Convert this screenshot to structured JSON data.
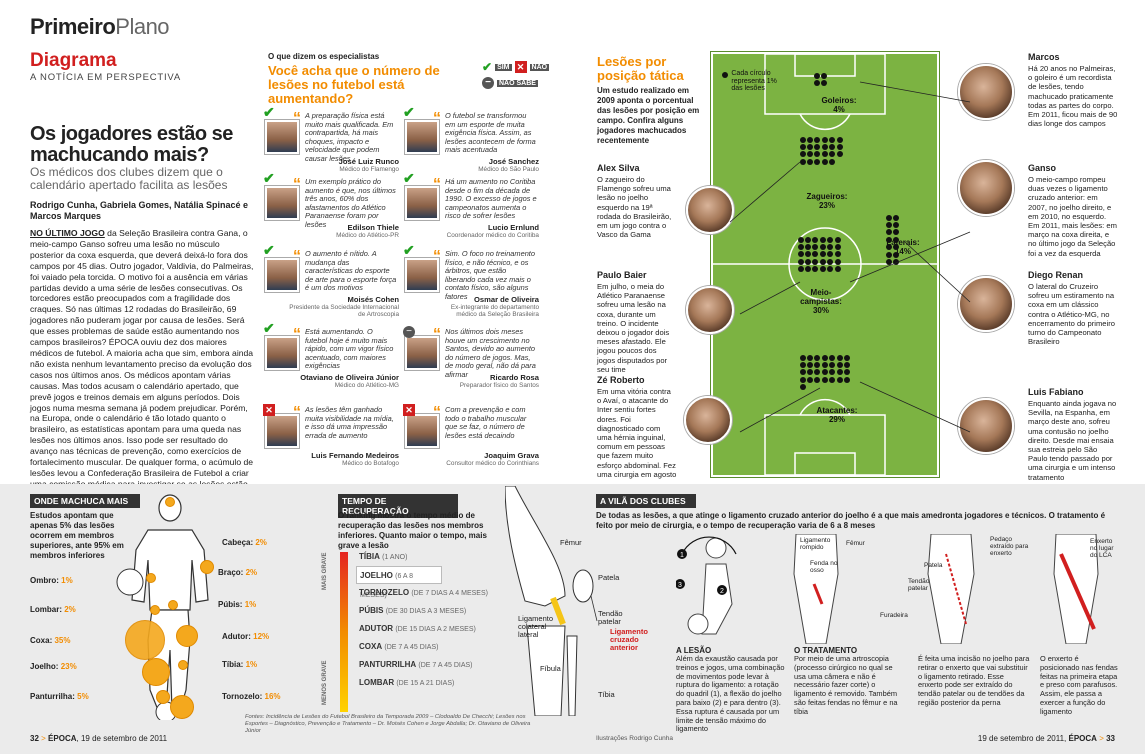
{
  "header": {
    "brand_bold": "Primeiro",
    "brand_light": "Plano",
    "section": "Diagrama",
    "tagline": "A NOTÍCIA EM PERSPECTIVA"
  },
  "article": {
    "headline": "Os jogadores estão se machucando mais?",
    "subhead": "Os médicos dos clubes dizem que o calendário apertado facilita as lesões",
    "authors": "Rodrigo Cunha, Gabriela Gomes, Natália Spinacé e Marcos Marques",
    "lead": "NO ÚLTIMO JOGO",
    "body": " da Seleção Brasileira contra Gana, o meio-campo Ganso sofreu uma lesão no músculo posterior da coxa esquerda, que deverá deixá-lo fora dos campos por 45 dias. Outro jogador, Valdivia, do Palmeiras, foi vaiado pela torcida. O motivo foi a ausência em várias partidas devido a uma série de lesões consecutivas. Os torcedores estão preocupados com a fragilidade dos craques. Só nas últimas 12 rodadas do Brasileirão, 69 jogadores não puderam jogar por causa de lesões. Será que esses problemas de saúde estão aumentando nos campos brasileiros? ÉPOCA ouviu dez dos maiores médicos de futebol. A maioria acha que sim, embora ainda não exista nenhum levantamento preciso da evolução dos casos nos últimos anos. Os médicos apontam várias causas. Mas todos acusam o calendário apertado, que prevê jogos e treinos demais em alguns períodos. Dois jogos numa mesma semana já podem prejudicar. Porém, na Europa, onde o calendário é tão lotado quanto o brasileiro, as estatísticas apontam para uma queda nas lesões nos últimos anos. Isso pode ser resultado do avanço nas técnicas de prevenção, como exercícios de fortalecimento muscular. De qualquer forma, o acúmulo de lesões levou a Confederação Brasileira de Futebol a criar uma comissão médica para investigar se as lesões estão crescendo e descobrir suas causas."
  },
  "experts": {
    "kicker": "O que dizem os especialistas",
    "question": "Você acha que o número de lesões no futebol está aumentando?",
    "legend": {
      "yes": "SIM",
      "no": "NÃO",
      "unsure": "NÃO SABE"
    },
    "items": [
      {
        "answer": "yes",
        "quote": "A preparação física está muito mais qualificada. Em contrapartida, há mais choques, impacto e velocidade que podem causar lesões",
        "name": "José Luiz Runco",
        "role": "Médico do Flamengo"
      },
      {
        "answer": "yes",
        "quote": "O futebol se transformou em um esporte de muita exigência física. Assim, as lesões acontecem de forma mais acentuada",
        "name": "José Sanchez",
        "role": "Médico do São Paulo"
      },
      {
        "answer": "yes",
        "quote": "Um exemplo prático do aumento é que, nos últimos três anos, 60% dos afastamentos do Atlético Paranaense foram por lesões",
        "name": "Edilson Thiele",
        "role": "Médico do Atlético-PR"
      },
      {
        "answer": "yes",
        "quote": "Há um aumento no Coritiba desde o fim da década de 1990. O excesso de jogos e campeonatos aumenta o risco de sofrer lesões",
        "name": "Lucio Ernlund",
        "role": "Coordenador médico do Coritiba"
      },
      {
        "answer": "yes",
        "quote": "O aumento é nítido. A mudança das características do esporte de arte para o esporte força é um dos motivos",
        "name": "Moisés Cohen",
        "role": "Presidente da Sociedade Internacional de Artroscopia"
      },
      {
        "answer": "yes",
        "quote": "Sim. O foco no treinamento físico, e não técnico, e os árbitros, que estão liberando cada vez mais o contato físico, são alguns fatores",
        "name": "Osmar de Oliveira",
        "role": "Ex-integrante do departamento médico da Seleção Brasileira"
      },
      {
        "answer": "yes",
        "quote": "Está aumentando. O futebol hoje é muito mais rápido, com um vigor físico acentuado, com maiores exigências",
        "name": "Otaviano de Oliveira Júnior",
        "role": "Médico do Atlético-MG"
      },
      {
        "answer": "unsure",
        "quote": "Nos últimos dois meses houve um crescimento no Santos, devido ao aumento do número de jogos. Mas, de modo geral, não dá para afirmar",
        "name": "Ricardo Rosa",
        "role": "Preparador físico do Santos"
      },
      {
        "answer": "no",
        "quote": "As lesões têm ganhado muita visibilidade na mídia, e isso dá uma impressão errada de aumento",
        "name": "Luis Fernando Medeiros",
        "role": "Médico do Botafogo"
      },
      {
        "answer": "no",
        "quote": "Com a prevenção e com todo o trabalho muscular que se faz, o número de lesões está decaindo",
        "name": "Joaquim Grava",
        "role": "Consultor médico do Corinthians"
      }
    ]
  },
  "positions": {
    "title": "Lesões por posição tática",
    "intro": "Um estudo realizado em 2009 aponta o porcentual das lesões por posição em campo. Confira alguns jogadores machucados recentemente",
    "legend": "Cada círculo representa 1% das lesões",
    "zones": [
      {
        "label": "Goleiros:",
        "value": "4%",
        "dots": 4
      },
      {
        "label": "Zagueiros:",
        "value": "23%",
        "dots": 23
      },
      {
        "label": "Laterais:",
        "value": "14%",
        "dots": 14
      },
      {
        "label": "Meio-campistas:",
        "value": "30%",
        "dots": 30
      },
      {
        "label": "Atacantes:",
        "value": "29%",
        "dots": 29
      }
    ],
    "players_left": [
      {
        "name": "Alex Silva",
        "text": "O zagueiro do Flamengo sofreu uma lesão no joelho esquerdo na 19ª rodada do Brasileirão, em um jogo contra o Vasco da Gama"
      },
      {
        "name": "Paulo Baier",
        "text": "Em julho, o meia do Atlético Paranaense sofreu uma lesão na coxa, durante um treino. O incidente deixou o jogador dois meses afastado. Ele jogou poucos dos jogos disputados por seu time"
      },
      {
        "name": "Zé Roberto",
        "text": "Em uma vitória contra o Avaí, o atacante do Inter sentiu fortes dores. Foi diagnosticado com uma hérnia inguinal, comum em pessoas que fazem muito esforço abdominal. Fez uma cirurgia em agosto"
      }
    ],
    "players_right": [
      {
        "name": "Marcos",
        "text": "Há 20 anos no Palmeiras, o goleiro é um recordista de lesões, tendo machucado praticamente todas as partes do corpo. Em 2011, ficou mais de 90 dias longe dos campos"
      },
      {
        "name": "Ganso",
        "text": "O meio-campo rompeu duas vezes o ligamento cruzado anterior: em 2007, no joelho direito, e em 2010, no esquerdo. Em 2011, mais lesões: em março na coxa direita, e no último jogo da Seleção foi a vez da esquerda"
      },
      {
        "name": "Diego Renan",
        "text": "O lateral do Cruzeiro sofreu um estiramento na coxa em um clássico contra o Atlético-MG, no encerramento do primeiro turno do Campeonato Brasileiro"
      },
      {
        "name": "Luis Fabiano",
        "text": "Enquanto ainda jogava no Sevilla, na Espanha, em março deste ano, sofreu uma contusão no joelho direito. Desde mai ensaia sua estreia pelo São Paulo tendo passado por uma cirurgia e um intenso tratamento"
      }
    ]
  },
  "body_map": {
    "title": "ONDE MACHUCA MAIS",
    "intro": "Estudos apontam que apenas 5% das lesões ocorrem em membros superiores, ante 95% em membros inferiores",
    "parts": [
      {
        "label": "Cabeça:",
        "value": "2%"
      },
      {
        "label": "Braço:",
        "value": "2%"
      },
      {
        "label": "Ombro:",
        "value": "1%"
      },
      {
        "label": "Púbis:",
        "value": "1%"
      },
      {
        "label": "Lombar:",
        "value": "2%"
      },
      {
        "label": "Adutor:",
        "value": "12%"
      },
      {
        "label": "Coxa:",
        "value": "35%"
      },
      {
        "label": "Tíbia:",
        "value": "1%"
      },
      {
        "label": "Joelho:",
        "value": "23%"
      },
      {
        "label": "Panturrilha:",
        "value": "5%"
      },
      {
        "label": "Tornozelo:",
        "value": "16%"
      }
    ]
  },
  "recovery": {
    "title": "TEMPO DE RECUPERAÇÃO",
    "intro": "O ranking mostra o tempo médio de recuperação das lesões nos membros inferiores. Quanto maior o tempo, mais grave a lesão",
    "axis_top": "MAIS GRAVE",
    "axis_bottom": "MENOS GRAVE",
    "rows": [
      {
        "name": "TÍBIA",
        "range": "(1 ANO)"
      },
      {
        "name": "JOELHO",
        "range": "(6 A 8 MESES)"
      },
      {
        "name": "TORNOZELO",
        "range": "(DE 7 DIAS A 4 MESES)"
      },
      {
        "name": "PÚBIS",
        "range": "(DE 30 DIAS A 3 MESES)"
      },
      {
        "name": "ADUTOR",
        "range": "(DE 15 DIAS A 2 MESES)"
      },
      {
        "name": "COXA",
        "range": "(DE 7 A 45 DIAS)"
      },
      {
        "name": "PANTURRILHA",
        "range": "(DE 7 A 45 DIAS)"
      },
      {
        "name": "LOMBAR",
        "range": "(DE 15 A 21 DIAS)"
      }
    ],
    "sources": "Fontes: Incidência de Lesões do Futebol Brasileiro da Temporada 2009 – Clodoaldo De Checchi; Lesões nos Esportes – Diagnóstico, Prevenção e Tratamento – Dr. Moisés Cohen e Jorge Abdalla; Dr. Otaviano de Oliveira Júnior"
  },
  "knee": {
    "labels": {
      "femur": "Fêmur",
      "patela": "Patela",
      "tendao": "Tendão patelar",
      "lig_lateral": "Ligamento colateral lateral",
      "lig_cruzado": "Ligamento cruzado anterior",
      "fibula": "Fíbula",
      "tibia": "Tíbia"
    }
  },
  "villain": {
    "title": "A VILÃ DOS CLUBES",
    "intro": "De todas as lesões, a que atinge o ligamento cruzado anterior do joelho é a que mais amedronta jogadores e técnicos. O tratamento é feito por meio de cirurgia, e o tempo de recuperação varia de 6 a 8 meses",
    "labels": {
      "lig_rompido": "Ligamento rompido",
      "femur": "Fêmur",
      "fenda": "Fenda no osso",
      "patela": "Patela",
      "tendao": "Tendão patelar",
      "furadeira": "Furadeira",
      "pedaco": "Pedaço extraído para enxerto",
      "enxerto": "Enxerto no lugar do LCA"
    },
    "steps": [
      {
        "title": "A LESÃO",
        "text": "Além da exaustão causada por treinos e jogos, uma combinação de movimentos pode levar à ruptura do ligamento: a rotação do quadril (1), a flexão do joelho para baixo (2) e para dentro (3). Essa ruptura é causada por um limite de tensão máximo do ligamento"
      },
      {
        "title": "O TRATAMENTO",
        "text": "Por meio de uma artroscopia (processo cirúrgico no qual se usa uma câmera e não é necessário fazer corte) o ligamento é removido. Também são feitas fendas no fêmur e na tíbia"
      },
      {
        "title": "",
        "text": "É feita uma incisão no joelho para retirar o enxerto que vai substituir o ligamento retirado. Esse enxerto pode ser extraído do tendão patelar ou de tendões da região posterior da perna"
      },
      {
        "title": "",
        "text": "O enxerto é posicionado nas fendas feitas na primeira etapa e preso com parafusos. Assim, ele passa a exercer a função do ligamento"
      }
    ]
  },
  "footer": {
    "left_page": "32",
    "left_brand": "ÉPOCA",
    "left_date": "19 de setembro de 2011",
    "right_page": "33",
    "right_brand": "ÉPOCA",
    "right_date": "19 de setembro de 2011",
    "credit": "Ilustrações Rodrigo Cunha"
  }
}
